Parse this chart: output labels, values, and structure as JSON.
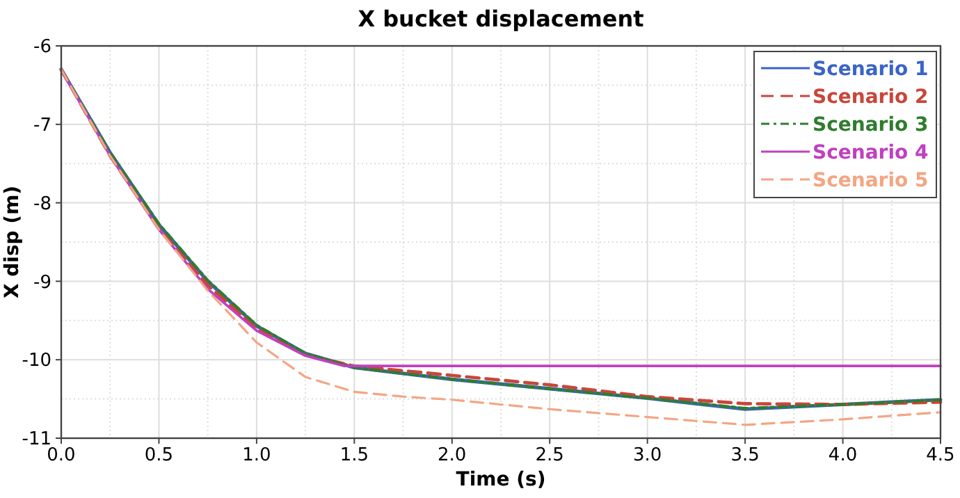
{
  "chart_data": {
    "type": "line",
    "title": "X bucket displacement",
    "xlabel": "Time (s)",
    "ylabel": "X disp (m)",
    "xlim": [
      0,
      4.5
    ],
    "ylim": [
      -11,
      -6
    ],
    "xticks": [
      {
        "value": 0,
        "label": "0.0"
      },
      {
        "value": 0.5,
        "label": "0.5"
      },
      {
        "value": 1,
        "label": "1.0"
      },
      {
        "value": 1.5,
        "label": "1.5"
      },
      {
        "value": 2,
        "label": "2.0"
      },
      {
        "value": 2.5,
        "label": "2.5"
      },
      {
        "value": 3,
        "label": "3.0"
      },
      {
        "value": 3.5,
        "label": "3.5"
      },
      {
        "value": 4,
        "label": "4.0"
      },
      {
        "value": 4.5,
        "label": "4.5"
      }
    ],
    "yticks": [
      -11,
      -10,
      -9,
      -8,
      -7,
      -6
    ],
    "grid": true,
    "legend": "top right",
    "x": [
      0,
      0.25,
      0.5,
      0.75,
      1,
      1.25,
      1.5,
      2,
      2.5,
      3,
      3.5,
      4,
      4.5
    ],
    "series": [
      {
        "name": "Scenario 1",
        "color": "#3a64c8",
        "line_style": "solid",
        "values": [
          -6.3,
          -7.36,
          -8.28,
          -9.0,
          -9.57,
          -9.92,
          -10.1,
          -10.25,
          -10.37,
          -10.49,
          -10.63,
          -10.57,
          -10.51
        ]
      },
      {
        "name": "Scenario 2",
        "color": "#c8463a",
        "line_style": "dashed",
        "values": [
          -6.3,
          -7.4,
          -8.33,
          -9.05,
          -9.6,
          -9.94,
          -10.08,
          -10.2,
          -10.32,
          -10.47,
          -10.56,
          -10.57,
          -10.54
        ]
      },
      {
        "name": "Scenario 3",
        "color": "#2e7d2e",
        "line_style": "dashdot",
        "values": [
          -6.3,
          -7.36,
          -8.27,
          -8.99,
          -9.56,
          -9.92,
          -10.1,
          -10.25,
          -10.37,
          -10.49,
          -10.62,
          -10.57,
          -10.51
        ]
      },
      {
        "name": "Scenario 4",
        "color": "#c040c0",
        "line_style": "solid",
        "x": [
          0,
          0.25,
          0.5,
          0.75,
          1,
          1.25,
          1.45,
          2,
          3,
          4,
          4.5
        ],
        "values": [
          -6.3,
          -7.4,
          -8.34,
          -9.1,
          -9.63,
          -9.95,
          -10.08,
          -10.08,
          -10.08,
          -10.08,
          -10.08
        ]
      },
      {
        "name": "Scenario 5",
        "color": "#f4a582",
        "line_style": "dashed",
        "x": [
          0,
          0.25,
          0.5,
          0.75,
          1,
          1.25,
          1.5,
          1.75,
          2,
          2.5,
          3,
          3.5,
          4,
          4.5
        ],
        "values": [
          -6.3,
          -7.4,
          -8.34,
          -9.12,
          -9.78,
          -10.22,
          -10.41,
          -10.47,
          -10.51,
          -10.63,
          -10.73,
          -10.83,
          -10.76,
          -10.67
        ]
      }
    ]
  }
}
